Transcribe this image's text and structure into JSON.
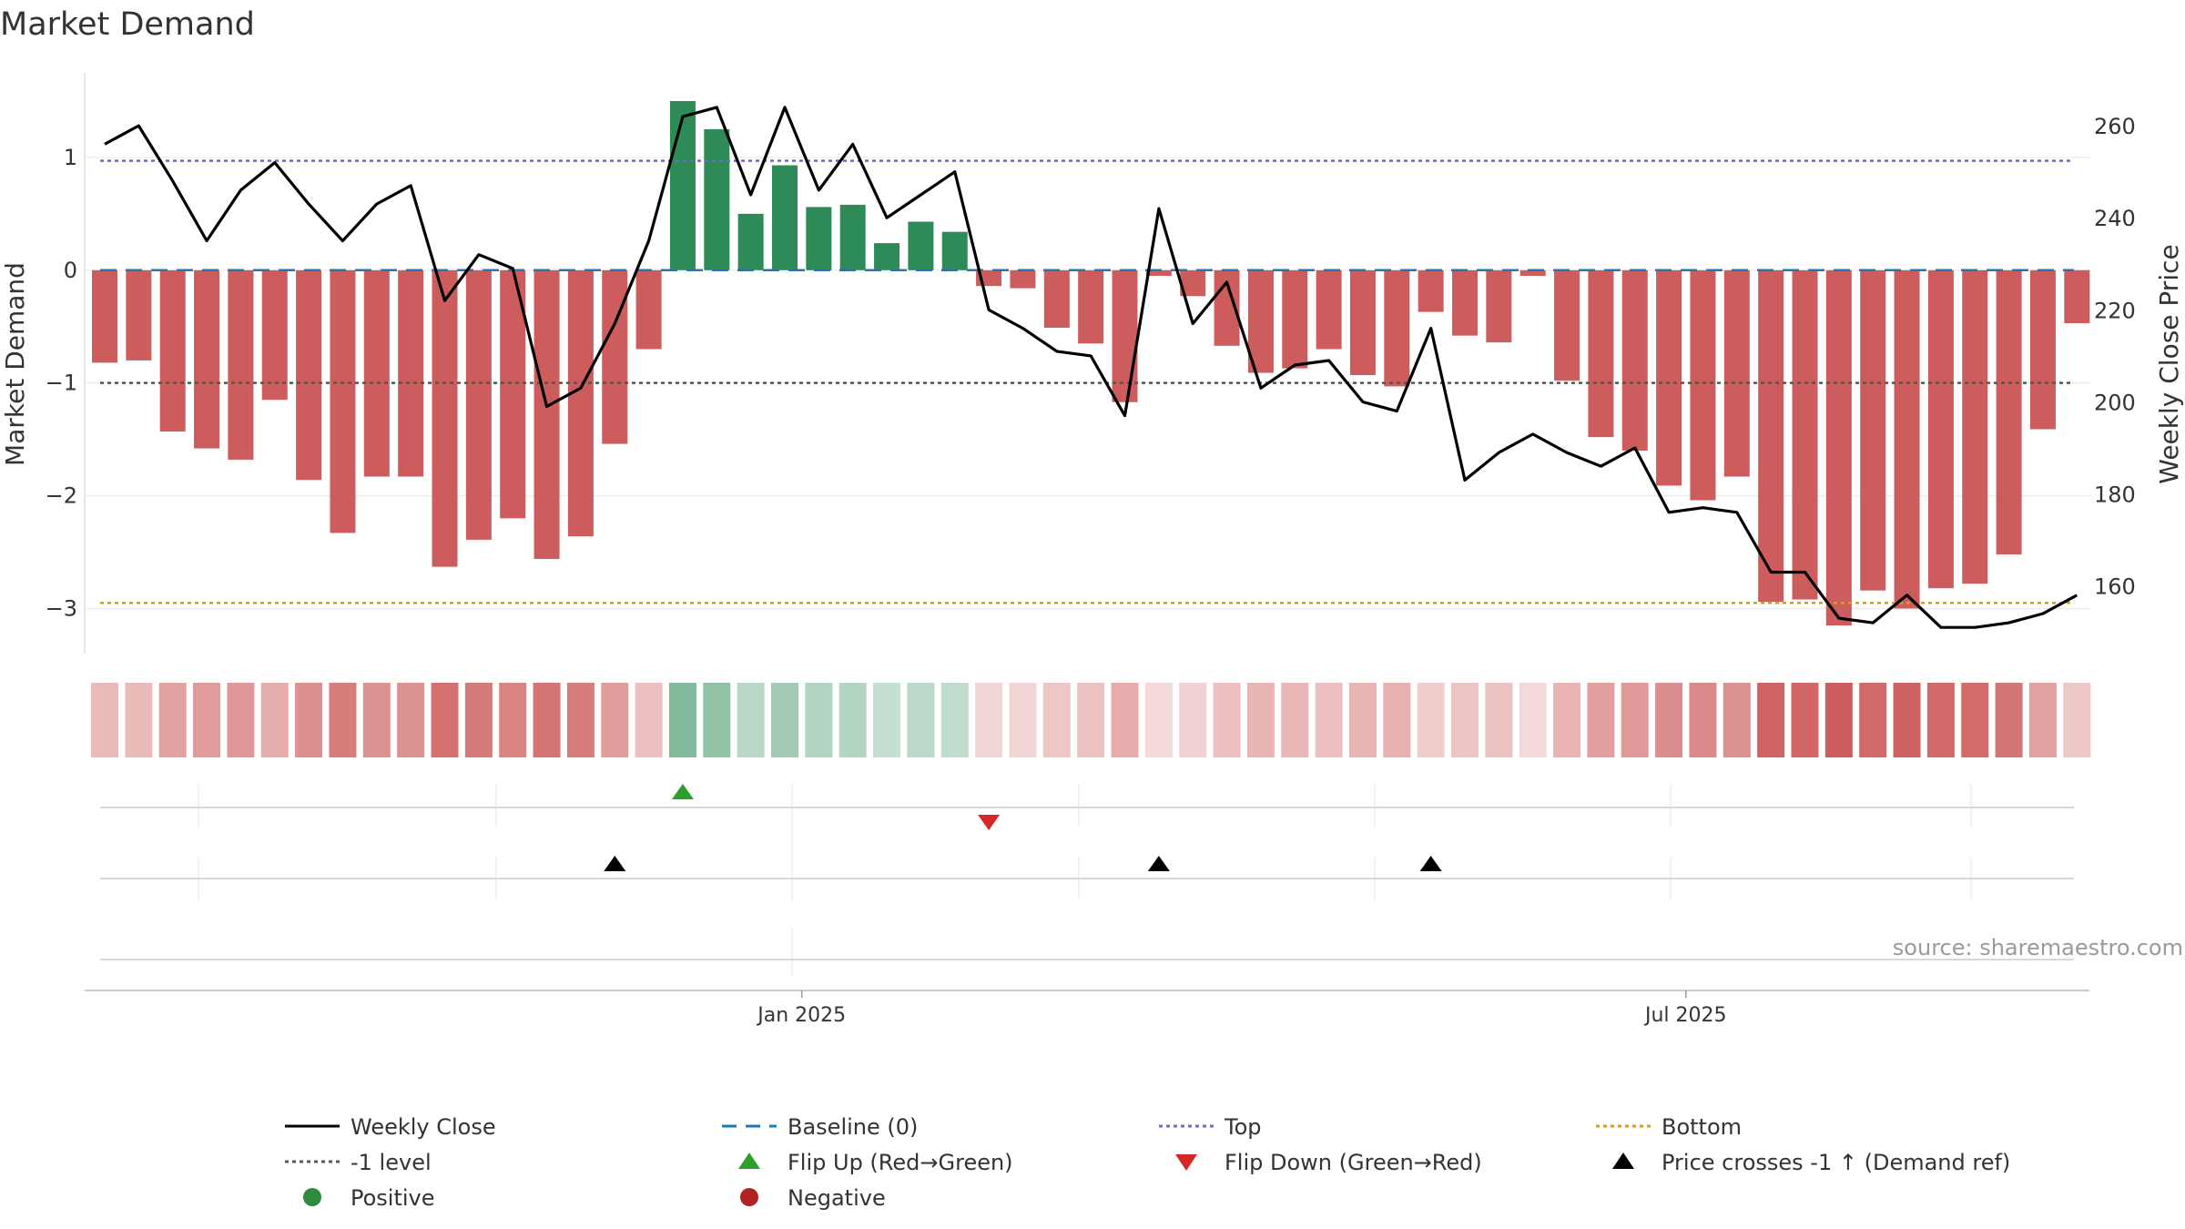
{
  "chart_data": {
    "type": "bar+line",
    "title": "Market Demand",
    "ylabel": "Market Demand",
    "y2label": "Weekly Close Price",
    "ylim": [
      -3.4,
      1.75
    ],
    "y2lim": [
      145.3,
      271.5
    ],
    "yticks": [
      1,
      0,
      -1,
      -2,
      -3
    ],
    "yticklabels": [
      "1",
      "0",
      "−1",
      "−2",
      "−3"
    ],
    "y2ticks": [
      260,
      240,
      220,
      200,
      180,
      160
    ],
    "y2ticklabels": [
      "260",
      "240",
      "220",
      "200",
      "180",
      "160"
    ],
    "date_ticks": [
      {
        "week": 20.5,
        "label": "Jan 2025"
      },
      {
        "week": 46.5,
        "label": "Jul 2025"
      }
    ],
    "demand": [
      -0.82,
      -0.8,
      -1.43,
      -1.58,
      -1.68,
      -1.15,
      -1.86,
      -2.33,
      -1.83,
      -1.83,
      -2.63,
      -2.39,
      -2.2,
      -2.56,
      -2.36,
      -1.54,
      -0.7,
      1.5,
      1.25,
      0.5,
      0.93,
      0.56,
      0.58,
      0.24,
      0.43,
      0.34,
      -0.14,
      -0.16,
      -0.51,
      -0.65,
      -1.17,
      -0.05,
      -0.23,
      -0.67,
      -0.91,
      -0.87,
      -0.7,
      -0.93,
      -1.03,
      -0.37,
      -0.58,
      -0.64,
      -0.05,
      -0.98,
      -1.48,
      -1.6,
      -1.91,
      -2.04,
      -1.83,
      -2.94,
      -2.92,
      -3.15,
      -2.84,
      -3.0,
      -2.82,
      -2.78,
      -2.52,
      -1.41,
      -0.47
    ],
    "close": [
      256,
      260,
      248,
      235,
      246,
      252,
      243,
      235,
      243,
      247,
      222,
      232,
      229,
      199,
      203,
      217,
      235,
      262,
      264,
      245,
      264,
      246,
      256,
      240,
      245,
      250,
      220,
      216,
      211,
      210,
      197,
      242,
      217,
      226,
      203,
      208,
      209,
      200,
      198,
      216,
      183,
      189,
      193,
      189,
      186,
      190,
      176,
      177,
      176,
      163,
      163,
      153,
      152,
      158,
      151,
      151,
      152,
      154,
      158
    ],
    "baseline": 0,
    "top_level": 0.97,
    "minus_one_level": -1,
    "bottom_level": -2.95,
    "flip_up_weeks": [
      17
    ],
    "flip_down_weeks": [
      26
    ],
    "price_cross_weeks": [
      15,
      31,
      39
    ],
    "source": "source: sharemaestro.com",
    "legend": [
      {
        "label": "Weekly Close",
        "kind": "line-solid",
        "color": "#000000"
      },
      {
        "label": "Baseline (0)",
        "kind": "line-dash",
        "color": "#1f77b4"
      },
      {
        "label": "Top",
        "kind": "line-dot",
        "color": "#6b6bd6"
      },
      {
        "label": "Bottom",
        "kind": "line-dot",
        "color": "#d4a017"
      },
      {
        "label": "-1 level",
        "kind": "line-dot",
        "color": "#555555"
      },
      {
        "label": "Flip Up (Red→Green)",
        "kind": "triangle-up",
        "color": "#2ca02c"
      },
      {
        "label": "Flip Down (Green→Red)",
        "kind": "triangle-down",
        "color": "#d62728"
      },
      {
        "label": "Price crosses -1 ↑ (Demand ref)",
        "kind": "triangle-up",
        "color": "#000000"
      },
      {
        "label": "Positive",
        "kind": "circle",
        "color": "#2e8b3e"
      },
      {
        "label": "Negative",
        "kind": "circle",
        "color": "#b22222"
      }
    ],
    "colors": {
      "positive_bar": "#2e8b57",
      "negative_bar": "#cd5c5c",
      "price_line": "#000000",
      "baseline": "#1f77b4",
      "top": "#6b6bd6",
      "bottom": "#d4a017",
      "minus_one": "#555555",
      "flip_up": "#2ca02c",
      "flip_down": "#d62728",
      "price_cross": "#000000"
    }
  }
}
